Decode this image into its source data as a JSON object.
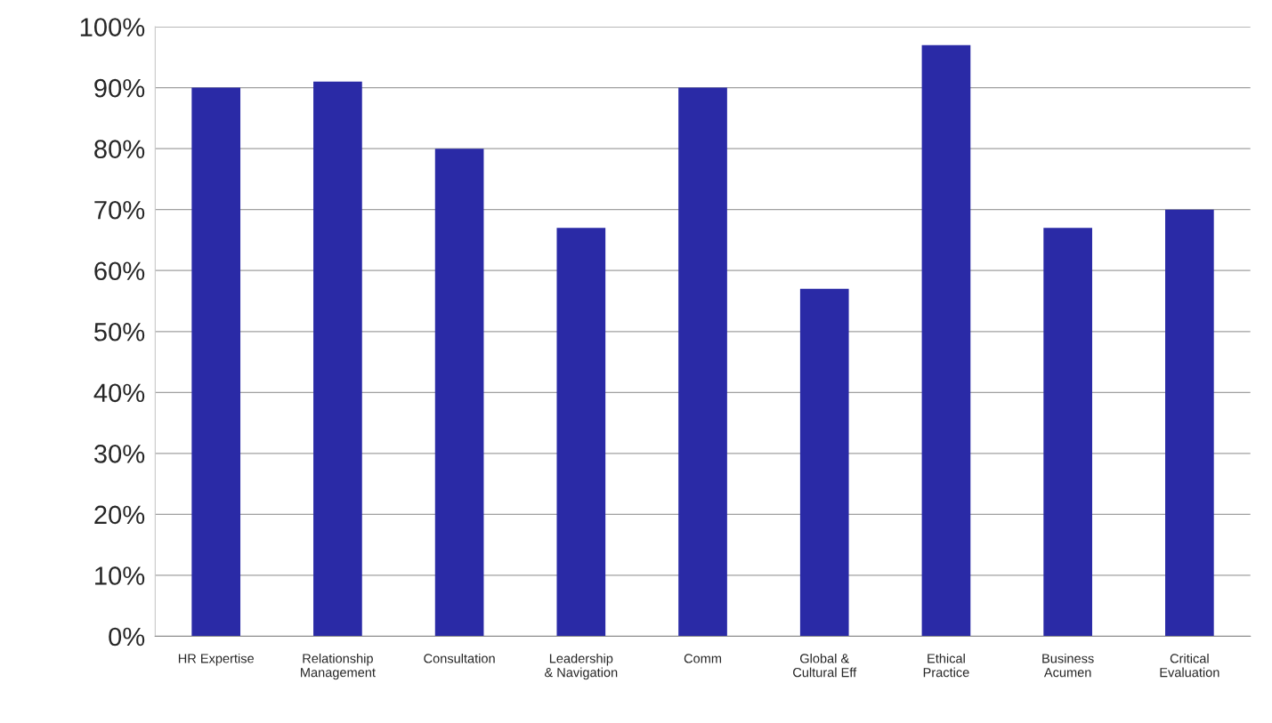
{
  "chart_data": {
    "type": "bar",
    "categories": [
      "HR Expertise",
      "Relationship\nManagement",
      "Consultation",
      "Leadership\n& Navigation",
      "Comm",
      "Global &\nCultural Eff",
      "Ethical\nPractice",
      "Business\nAcumen",
      "Critical\nEvaluation"
    ],
    "values": [
      90,
      91,
      80,
      67,
      90,
      57,
      97,
      67,
      70
    ],
    "color": "#2a2aa6",
    "ylim": [
      0,
      100
    ],
    "yticks": [
      {
        "value": 0,
        "label": "0%"
      },
      {
        "value": 10,
        "label": "10%"
      },
      {
        "value": 20,
        "label": "20%"
      },
      {
        "value": 30,
        "label": "30%"
      },
      {
        "value": 40,
        "label": "40%"
      },
      {
        "value": 50,
        "label": "50%"
      },
      {
        "value": 60,
        "label": "60%"
      },
      {
        "value": 70,
        "label": "70%"
      },
      {
        "value": 80,
        "label": "80%"
      },
      {
        "value": 90,
        "label": "90%"
      },
      {
        "value": 100,
        "label": "100%"
      }
    ],
    "grid": "y"
  }
}
